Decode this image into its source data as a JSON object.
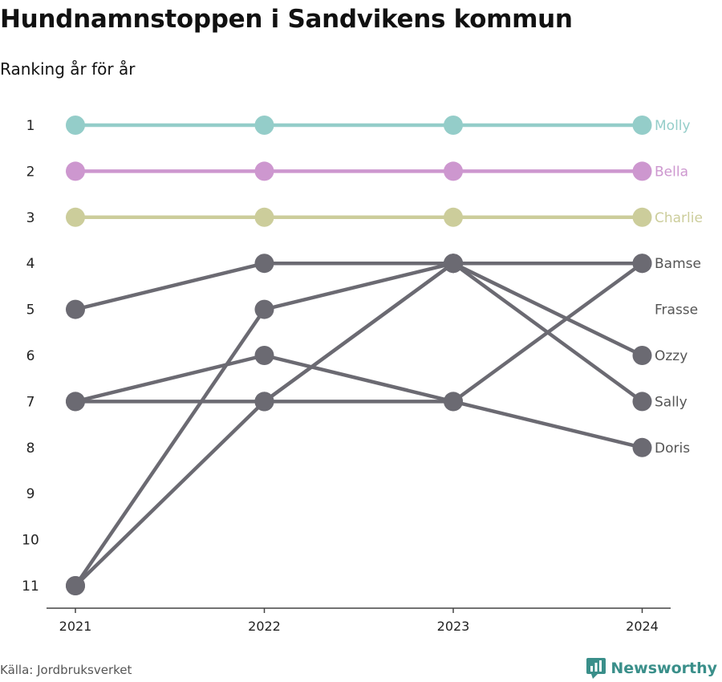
{
  "title": "Hundnamnstoppen i Sandvikens kommun",
  "subtitle": "Ranking år för år",
  "source": "Källa: Jordbruksverket",
  "brand": "Newsworthy",
  "colors": {
    "grey": "#6b6a72",
    "axis": "#444444",
    "brand": "#3a8f8a"
  },
  "chart_data": {
    "type": "line",
    "categories": [
      "2021",
      "2022",
      "2023",
      "2024"
    ],
    "y_ticks": [
      1,
      2,
      3,
      4,
      5,
      6,
      7,
      8,
      9,
      10,
      11
    ],
    "y_reversed": true,
    "series": [
      {
        "name": "Molly",
        "values": [
          1,
          1,
          1,
          1
        ],
        "color": "#94cdc9"
      },
      {
        "name": "Bella",
        "values": [
          2,
          2,
          2,
          2
        ],
        "color": "#cd97cf"
      },
      {
        "name": "Charlie",
        "values": [
          3,
          3,
          3,
          3
        ],
        "color": "#cccd9b"
      },
      {
        "name": "Bamse",
        "values": [
          5,
          4,
          4,
          4
        ],
        "color": "#6b6a72"
      },
      {
        "name": "Frasse",
        "values": [
          11,
          5,
          4,
          null
        ],
        "color": "#6b6a72"
      },
      {
        "name": "Ozzy",
        "values": [
          11,
          7,
          4,
          6
        ],
        "color": "#6b6a72"
      },
      {
        "name": "Sally",
        "values": [
          7,
          7,
          4,
          7
        ],
        "color": "#6b6a72"
      },
      {
        "name": "Doris",
        "values": [
          7,
          6,
          7,
          8
        ],
        "color": "#6b6a72"
      },
      {
        "name": "",
        "values": [
          null,
          7,
          7,
          4
        ],
        "color": "#6b6a72"
      }
    ],
    "end_labels": [
      {
        "text": "Molly",
        "rank": 1,
        "color": "#94cdc9"
      },
      {
        "text": "Bella",
        "rank": 2,
        "color": "#cd97cf"
      },
      {
        "text": "Charlie",
        "rank": 3,
        "color": "#cccd9b"
      },
      {
        "text": "Bamse",
        "rank": 4,
        "color": "#555555"
      },
      {
        "text": "Frasse",
        "rank": 5,
        "color": "#555555"
      },
      {
        "text": "Ozzy",
        "rank": 6,
        "color": "#555555"
      },
      {
        "text": "Sally",
        "rank": 7,
        "color": "#555555"
      },
      {
        "text": "Doris",
        "rank": 8,
        "color": "#555555"
      }
    ]
  }
}
